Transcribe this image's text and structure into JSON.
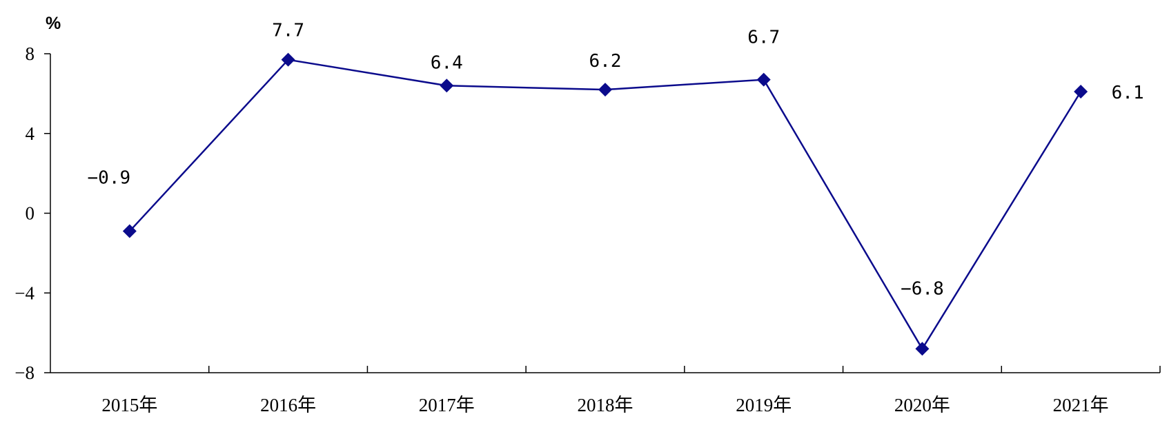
{
  "chart_data": {
    "type": "line",
    "title": "",
    "xlabel": "",
    "ylabel": "%",
    "categories": [
      "2015年",
      "2016年",
      "2017年",
      "2018年",
      "2019年",
      "2020年",
      "2021年"
    ],
    "series": [
      {
        "name": "",
        "values": [
          -0.9,
          7.7,
          6.4,
          6.2,
          6.7,
          -6.8,
          6.1
        ],
        "data_labels": [
          "−0.9",
          "7.7",
          "6.4",
          "6.2",
          "6.7",
          "−6.8",
          "6.1"
        ],
        "color": "#0b0b8c",
        "marker": "diamond"
      }
    ],
    "ylim": [
      -8,
      8
    ],
    "yticks": [
      8,
      4,
      0,
      -4,
      -8
    ],
    "grid": false,
    "legend": "none"
  }
}
